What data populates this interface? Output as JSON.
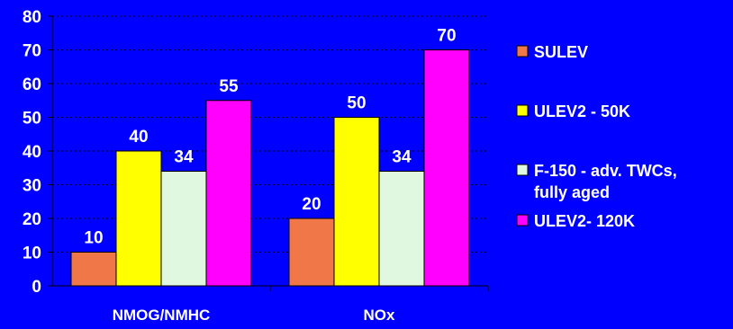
{
  "chart_data": {
    "type": "bar",
    "categories": [
      "NMOG/NMHC",
      "NOx"
    ],
    "series": [
      {
        "name": "SULEV",
        "values": [
          10,
          20
        ],
        "color": "#f07848"
      },
      {
        "name": "ULEV2 - 50K",
        "values": [
          40,
          50
        ],
        "color": "#ffff00"
      },
      {
        "name": "F-150 - adv. TWCs, fully aged",
        "legend_lines": [
          "F-150 - adv. TWCs,",
          "fully aged"
        ],
        "values": [
          34,
          34
        ],
        "color": "#e0f8e0"
      },
      {
        "name": "ULEV2- 120K",
        "values": [
          55,
          70
        ],
        "color": "#ff00ff"
      }
    ],
    "yticks": [
      0,
      10,
      20,
      30,
      40,
      50,
      60,
      70,
      80
    ],
    "ylim": [
      0,
      80
    ],
    "grid": true,
    "data_labels": true,
    "legend_position": "right",
    "background_color": "#0000ff",
    "text_color": "#ffffff"
  }
}
